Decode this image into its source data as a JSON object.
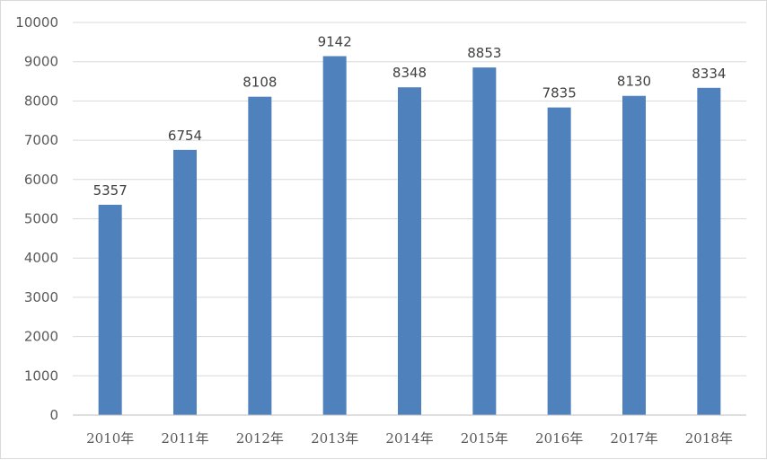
{
  "chart_data": {
    "type": "bar",
    "categories": [
      "2010年",
      "2011年",
      "2012年",
      "2013年",
      "2014年",
      "2015年",
      "2016年",
      "2017年",
      "2018年"
    ],
    "values": [
      5357,
      6754,
      8108,
      9142,
      8348,
      8853,
      7835,
      8130,
      8334
    ],
    "data_labels": [
      "5357",
      "6754",
      "8108",
      "9142",
      "8348",
      "8853",
      "7835",
      "8130",
      "8334"
    ],
    "y_ticks": [
      "0",
      "1000",
      "2000",
      "3000",
      "4000",
      "5000",
      "6000",
      "7000",
      "8000",
      "9000",
      "10000"
    ],
    "title": "",
    "xlabel": "",
    "ylabel": "",
    "ylim": [
      0,
      10000
    ],
    "grid": true,
    "legend": "none",
    "bar_color": "#4f81bd"
  }
}
